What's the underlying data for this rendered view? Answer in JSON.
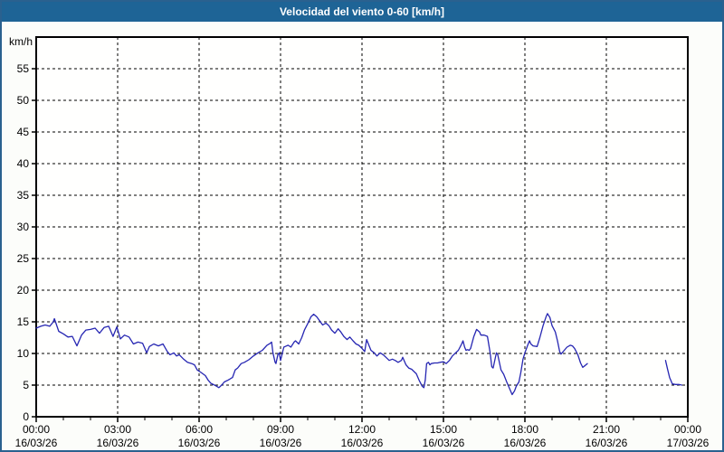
{
  "title_bar": {
    "title": "Velocidad del viento 0-60 [km/h]",
    "bg_color": "#1e6496",
    "text_color": "#ffffff",
    "border_color": "#2a618f"
  },
  "chart_data": {
    "type": "line",
    "title": "Velocidad del viento 0-60 [km/h]",
    "xlabel": "",
    "ylabel": "km/h",
    "ylim": [
      0,
      60
    ],
    "yticks": [
      0,
      5,
      10,
      15,
      20,
      25,
      30,
      35,
      40,
      45,
      50,
      55
    ],
    "xlim_hours": [
      0,
      24
    ],
    "x_minor_tick_every_hours": 1,
    "grid": "dashed-black",
    "line_color": "#2626b2",
    "frame_color": "#000000",
    "plot_bg": "#fffffe",
    "xticks": [
      {
        "hour": 0,
        "time": "00:00",
        "date": "16/03/26"
      },
      {
        "hour": 3,
        "time": "03:00",
        "date": "16/03/26"
      },
      {
        "hour": 6,
        "time": "06:00",
        "date": "16/03/26"
      },
      {
        "hour": 9,
        "time": "09:00",
        "date": "16/03/26"
      },
      {
        "hour": 12,
        "time": "12:00",
        "date": "16/03/26"
      },
      {
        "hour": 15,
        "time": "15:00",
        "date": "16/03/26"
      },
      {
        "hour": 18,
        "time": "18:00",
        "date": "16/03/26"
      },
      {
        "hour": 21,
        "time": "21:00",
        "date": "16/03/26"
      },
      {
        "hour": 24,
        "time": "00:00",
        "date": "17/03/26"
      }
    ],
    "series": [
      {
        "name": "Velocidad del viento",
        "units": "km/h",
        "segments": [
          [
            [
              0.0,
              14.0
            ],
            [
              0.17,
              14.3
            ],
            [
              0.33,
              14.5
            ],
            [
              0.5,
              14.3
            ],
            [
              0.63,
              15.0
            ],
            [
              0.67,
              15.5
            ],
            [
              0.75,
              14.5
            ],
            [
              0.83,
              13.5
            ],
            [
              1.0,
              13.1
            ],
            [
              1.17,
              12.6
            ],
            [
              1.33,
              12.7
            ],
            [
              1.5,
              11.2
            ],
            [
              1.67,
              12.9
            ],
            [
              1.83,
              13.7
            ],
            [
              2.0,
              13.8
            ],
            [
              2.17,
              14.0
            ],
            [
              2.33,
              13.2
            ],
            [
              2.5,
              14.1
            ],
            [
              2.67,
              14.3
            ],
            [
              2.83,
              12.7
            ],
            [
              2.97,
              14.2
            ],
            [
              3.1,
              12.3
            ],
            [
              3.25,
              12.9
            ],
            [
              3.42,
              12.6
            ],
            [
              3.58,
              11.5
            ],
            [
              3.75,
              11.8
            ],
            [
              3.92,
              11.6
            ],
            [
              4.07,
              10.1
            ],
            [
              4.17,
              11.1
            ],
            [
              4.33,
              11.5
            ],
            [
              4.5,
              11.2
            ],
            [
              4.67,
              11.5
            ],
            [
              4.83,
              10.3
            ],
            [
              4.93,
              9.8
            ],
            [
              5.07,
              10.1
            ],
            [
              5.17,
              9.6
            ],
            [
              5.27,
              9.8
            ],
            [
              5.43,
              9.1
            ],
            [
              5.57,
              8.6
            ],
            [
              5.73,
              8.4
            ],
            [
              5.83,
              8.2
            ],
            [
              5.93,
              7.4
            ],
            [
              6.07,
              7.0
            ],
            [
              6.23,
              6.5
            ],
            [
              6.33,
              5.8
            ],
            [
              6.43,
              5.3
            ],
            [
              6.57,
              5.0
            ],
            [
              6.73,
              4.6
            ],
            [
              6.83,
              5.0
            ],
            [
              6.93,
              5.5
            ],
            [
              7.07,
              5.8
            ],
            [
              7.23,
              6.2
            ],
            [
              7.33,
              7.4
            ],
            [
              7.42,
              7.7
            ],
            [
              7.55,
              8.4
            ],
            [
              7.67,
              8.6
            ],
            [
              7.83,
              9.0
            ],
            [
              8.0,
              9.6
            ],
            [
              8.17,
              10.1
            ],
            [
              8.33,
              10.5
            ],
            [
              8.5,
              11.3
            ],
            [
              8.62,
              11.6
            ],
            [
              8.67,
              11.8
            ],
            [
              8.72,
              10.1
            ],
            [
              8.8,
              8.6
            ],
            [
              8.83,
              8.4
            ],
            [
              8.9,
              9.8
            ],
            [
              8.95,
              10.1
            ],
            [
              9.0,
              8.9
            ],
            [
              9.12,
              11.0
            ],
            [
              9.17,
              11.1
            ],
            [
              9.28,
              11.3
            ],
            [
              9.38,
              11.0
            ],
            [
              9.5,
              11.8
            ],
            [
              9.55,
              12.0
            ],
            [
              9.67,
              11.5
            ],
            [
              9.78,
              12.5
            ],
            [
              9.88,
              13.7
            ],
            [
              10.0,
              14.7
            ],
            [
              10.12,
              15.8
            ],
            [
              10.22,
              16.2
            ],
            [
              10.33,
              15.8
            ],
            [
              10.45,
              15.1
            ],
            [
              10.55,
              14.5
            ],
            [
              10.67,
              14.8
            ],
            [
              10.78,
              14.4
            ],
            [
              10.88,
              13.7
            ],
            [
              11.0,
              13.2
            ],
            [
              11.12,
              13.9
            ],
            [
              11.22,
              13.4
            ],
            [
              11.33,
              12.7
            ],
            [
              11.45,
              12.2
            ],
            [
              11.55,
              12.6
            ],
            [
              11.67,
              12.0
            ],
            [
              11.78,
              11.5
            ],
            [
              11.88,
              11.3
            ],
            [
              12.0,
              10.8
            ],
            [
              12.1,
              10.3
            ],
            [
              12.17,
              12.2
            ],
            [
              12.33,
              10.5
            ],
            [
              12.45,
              10.1
            ],
            [
              12.55,
              9.6
            ],
            [
              12.67,
              10.1
            ],
            [
              12.78,
              9.8
            ],
            [
              12.88,
              9.4
            ],
            [
              13.0,
              8.9
            ],
            [
              13.12,
              9.1
            ],
            [
              13.22,
              8.9
            ],
            [
              13.33,
              8.6
            ],
            [
              13.45,
              8.9
            ],
            [
              13.5,
              9.4
            ],
            [
              13.62,
              8.2
            ],
            [
              13.72,
              7.7
            ],
            [
              13.83,
              7.5
            ],
            [
              13.95,
              7.0
            ],
            [
              14.0,
              6.8
            ],
            [
              14.1,
              5.8
            ],
            [
              14.22,
              4.8
            ],
            [
              14.28,
              4.6
            ],
            [
              14.33,
              5.8
            ],
            [
              14.38,
              8.4
            ],
            [
              14.45,
              8.6
            ],
            [
              14.5,
              8.2
            ],
            [
              14.55,
              8.4
            ],
            [
              14.67,
              8.5
            ],
            [
              14.78,
              8.5
            ],
            [
              14.88,
              8.6
            ],
            [
              15.0,
              8.7
            ],
            [
              15.1,
              8.4
            ],
            [
              15.22,
              8.9
            ],
            [
              15.33,
              9.6
            ],
            [
              15.45,
              10.1
            ],
            [
              15.55,
              10.5
            ],
            [
              15.67,
              11.5
            ],
            [
              15.72,
              12.0
            ],
            [
              15.78,
              11.0
            ],
            [
              15.83,
              10.5
            ],
            [
              15.88,
              10.6
            ],
            [
              15.95,
              10.5
            ],
            [
              16.0,
              10.8
            ],
            [
              16.12,
              12.7
            ],
            [
              16.22,
              13.8
            ],
            [
              16.33,
              13.4
            ],
            [
              16.38,
              12.9
            ],
            [
              16.5,
              12.9
            ],
            [
              16.62,
              12.7
            ],
            [
              16.72,
              10.1
            ],
            [
              16.78,
              7.9
            ],
            [
              16.83,
              7.7
            ],
            [
              16.95,
              10.1
            ],
            [
              17.0,
              9.8
            ],
            [
              17.12,
              7.4
            ],
            [
              17.22,
              6.7
            ],
            [
              17.33,
              5.5
            ],
            [
              17.45,
              4.3
            ],
            [
              17.53,
              3.5
            ],
            [
              17.62,
              4.1
            ],
            [
              17.68,
              4.8
            ],
            [
              17.78,
              5.5
            ],
            [
              17.85,
              7.0
            ],
            [
              17.93,
              9.1
            ],
            [
              18.0,
              10.1
            ],
            [
              18.12,
              11.5
            ],
            [
              18.17,
              12.0
            ],
            [
              18.22,
              11.5
            ],
            [
              18.3,
              11.2
            ],
            [
              18.45,
              11.1
            ],
            [
              18.55,
              12.5
            ],
            [
              18.67,
              14.4
            ],
            [
              18.78,
              15.8
            ],
            [
              18.83,
              16.3
            ],
            [
              18.92,
              15.7
            ],
            [
              19.0,
              14.4
            ],
            [
              19.12,
              13.4
            ],
            [
              19.2,
              12.0
            ],
            [
              19.28,
              10.3
            ],
            [
              19.33,
              9.9
            ],
            [
              19.45,
              10.5
            ],
            [
              19.55,
              11.0
            ],
            [
              19.67,
              11.3
            ],
            [
              19.75,
              11.2
            ],
            [
              19.83,
              10.8
            ],
            [
              19.95,
              9.8
            ],
            [
              20.05,
              8.5
            ],
            [
              20.13,
              7.8
            ],
            [
              20.22,
              8.1
            ],
            [
              20.3,
              8.4
            ]
          ],
          [
            [
              23.18,
              8.9
            ],
            [
              23.25,
              7.6
            ],
            [
              23.33,
              6.2
            ],
            [
              23.43,
              5.2
            ],
            [
              23.55,
              5.1
            ],
            [
              23.67,
              5.1
            ],
            [
              23.78,
              5.0
            ]
          ]
        ]
      }
    ]
  }
}
